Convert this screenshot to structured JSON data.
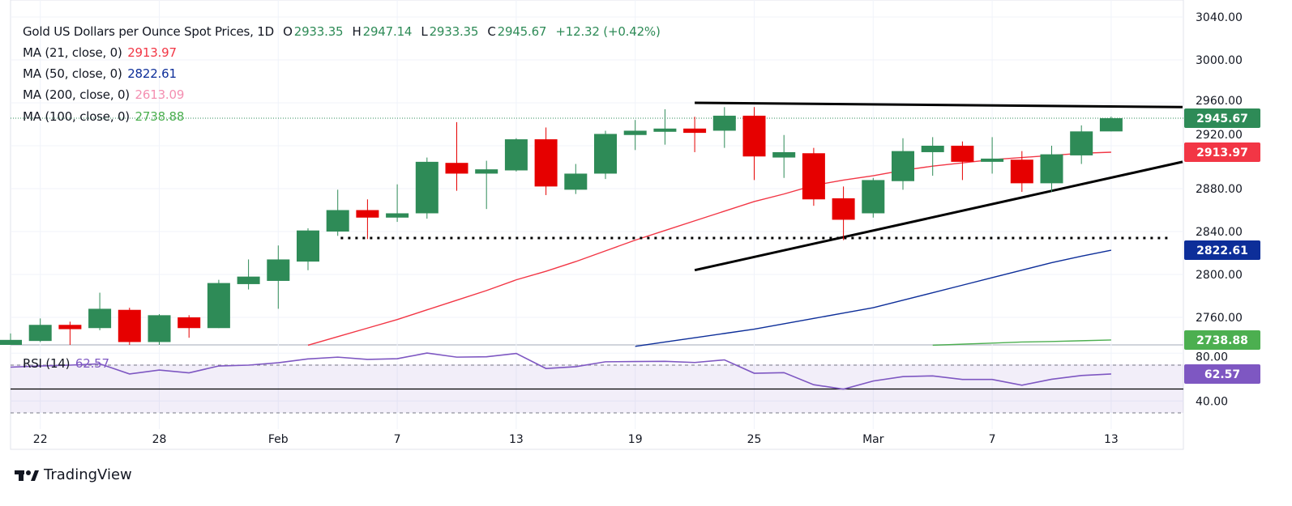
{
  "header": {
    "symbol": "Gold US Dollars per Ounce Spot Prices, 1D",
    "open_label": "O",
    "open": "2933.35",
    "high_label": "H",
    "high": "2947.14",
    "low_label": "L",
    "low": "2933.35",
    "close_label": "C",
    "close": "2945.67",
    "change": "+12.32 (+0.42%)"
  },
  "indicators": [
    {
      "label": "MA (21, close, 0)",
      "value": "2913.97",
      "color": "#f23645"
    },
    {
      "label": "MA (50, close, 0)",
      "value": "2822.61",
      "color": "#0d2e99"
    },
    {
      "label": "MA (200, close, 0)",
      "value": "2613.09",
      "color": "#f48fb1"
    },
    {
      "label": "MA (100, close, 0)",
      "value": "2738.88",
      "color": "#4caf50"
    }
  ],
  "rsi": {
    "label": "RSI (14)",
    "value": "62.57",
    "color": "#7e57c2"
  },
  "branding": "TradingView",
  "colors": {
    "up": "#2e8b57",
    "down": "#e60000",
    "trendline": "#000000"
  },
  "chart_data": {
    "type": "candlestick",
    "ylim": [
      2734,
      3056
    ],
    "y_ticks": [
      "3040.00",
      "3000.00",
      "2960.00",
      "2920.00",
      "2880.00",
      "2840.00",
      "2800.00",
      "2760.00"
    ],
    "y_tick_values": [
      3040,
      3000,
      2960,
      2920,
      2880,
      2840,
      2800,
      2760
    ],
    "x_ticks": [
      {
        "label": "22",
        "index": 1
      },
      {
        "label": "28",
        "index": 5
      },
      {
        "label": "Feb",
        "index": 9
      },
      {
        "label": "7",
        "index": 13
      },
      {
        "label": "13",
        "index": 17
      },
      {
        "label": "19",
        "index": 21
      },
      {
        "label": "25",
        "index": 25
      },
      {
        "label": "Mar",
        "index": 29
      },
      {
        "label": "7",
        "index": 33
      },
      {
        "label": "13",
        "index": 37
      }
    ],
    "ohlc": [
      [
        2730,
        2745,
        2725,
        2739
      ],
      [
        2738,
        2759,
        2737,
        2753
      ],
      [
        2753,
        2756,
        2732,
        2749
      ],
      [
        2750,
        2783,
        2748,
        2768
      ],
      [
        2767,
        2769,
        2730,
        2737
      ],
      [
        2737,
        2763,
        2731,
        2762
      ],
      [
        2760,
        2762,
        2741,
        2750
      ],
      [
        2750,
        2795,
        2750,
        2792
      ],
      [
        2791,
        2814,
        2786,
        2798
      ],
      [
        2794,
        2827,
        2768,
        2814
      ],
      [
        2812,
        2843,
        2804,
        2841
      ],
      [
        2840,
        2879,
        2836,
        2860
      ],
      [
        2860,
        2870,
        2833,
        2853
      ],
      [
        2853,
        2884,
        2849,
        2857
      ],
      [
        2857,
        2909,
        2852,
        2905
      ],
      [
        2904,
        2942,
        2878,
        2894
      ],
      [
        2894,
        2906,
        2861,
        2898
      ],
      [
        2897,
        2927,
        2896,
        2926
      ],
      [
        2926,
        2937,
        2874,
        2882
      ],
      [
        2879,
        2903,
        2875,
        2894
      ],
      [
        2894,
        2934,
        2889,
        2931
      ],
      [
        2930,
        2944,
        2916,
        2934
      ],
      [
        2933,
        2954,
        2921,
        2936
      ],
      [
        2936,
        2947,
        2914,
        2932
      ],
      [
        2934,
        2956,
        2918,
        2948
      ],
      [
        2948,
        2956,
        2888,
        2910
      ],
      [
        2909,
        2930,
        2890,
        2914
      ],
      [
        2913,
        2918,
        2864,
        2870
      ],
      [
        2871,
        2882,
        2832,
        2851
      ],
      [
        2857,
        2890,
        2853,
        2888
      ],
      [
        2887,
        2927,
        2879,
        2915
      ],
      [
        2914,
        2928,
        2892,
        2920
      ],
      [
        2920,
        2924,
        2888,
        2905
      ],
      [
        2905,
        2928,
        2894,
        2908
      ],
      [
        2907,
        2915,
        2877,
        2885
      ],
      [
        2885,
        2920,
        2877,
        2912
      ],
      [
        2911,
        2939,
        2903,
        2933.35
      ],
      [
        2933.35,
        2947.14,
        2933.35,
        2945.67
      ]
    ],
    "ma21": [
      null,
      null,
      null,
      null,
      null,
      null,
      null,
      null,
      null,
      null,
      2734,
      2742,
      2750,
      2758,
      2767,
      2776,
      2785,
      2795,
      2803,
      2812,
      2822,
      2832,
      2841,
      2850,
      2859,
      2868,
      2875,
      2883,
      2888,
      2892,
      2897,
      2901,
      2904,
      2907,
      2909,
      2911,
      2913,
      2913.97
    ],
    "ma50": [
      null,
      null,
      null,
      null,
      null,
      null,
      null,
      null,
      null,
      null,
      null,
      null,
      null,
      null,
      null,
      null,
      null,
      null,
      null,
      null,
      null,
      2733,
      2737,
      2741,
      2745,
      2749,
      2754,
      2759,
      2764,
      2769,
      2776,
      2783,
      2790,
      2797,
      2804,
      2811,
      2817,
      2822.61
    ],
    "ma100": [
      null,
      null,
      null,
      null,
      null,
      null,
      null,
      null,
      null,
      null,
      null,
      null,
      null,
      null,
      null,
      null,
      null,
      null,
      null,
      null,
      null,
      null,
      null,
      null,
      null,
      null,
      null,
      null,
      null,
      null,
      null,
      2734,
      2735,
      2736,
      2737,
      2737.5,
      2738.2,
      2738.88
    ],
    "trendlines": [
      {
        "name": "upper-trendline",
        "from": [
          23,
          2960
        ],
        "to": [
          39.4,
          2956
        ]
      },
      {
        "name": "lower-trendline",
        "from": [
          23,
          2804
        ],
        "to": [
          39.4,
          2905
        ]
      }
    ],
    "support_level": {
      "value": 2834,
      "from": 11.1,
      "to": 38.9
    },
    "last_price": 2945.67,
    "price_labels": [
      {
        "value": 2945.67,
        "text": "2945.67",
        "color": "#2e8b57"
      },
      {
        "value": 2913.97,
        "text": "2913.97",
        "color": "#f23645"
      },
      {
        "value": 2822.61,
        "text": "2822.61",
        "color": "#0d2e99"
      },
      {
        "value": 2738.88,
        "text": "2738.88",
        "color": "#4caf50"
      }
    ],
    "rsi": {
      "ylim": [
        25,
        85
      ],
      "y_ticks": [
        "80.00",
        "40.00"
      ],
      "y_tick_values": [
        80,
        40
      ],
      "bands": [
        70,
        50,
        30
      ],
      "values": [
        68.3,
        69.3,
        70,
        71.1,
        62.6,
        65.9,
        63.5,
        69.3,
        70,
        72,
        75.2,
        76.7,
        74.8,
        75.4,
        80.1,
        76.7,
        77,
        79.8,
        67.2,
        68.7,
        72.8,
        73,
        73.2,
        72.2,
        74.4,
        63.2,
        63.7,
        53.6,
        49.9,
        56.7,
        60.4,
        61,
        58,
        58,
        53.2,
        58.2,
        61.3,
        62.57
      ]
    }
  }
}
